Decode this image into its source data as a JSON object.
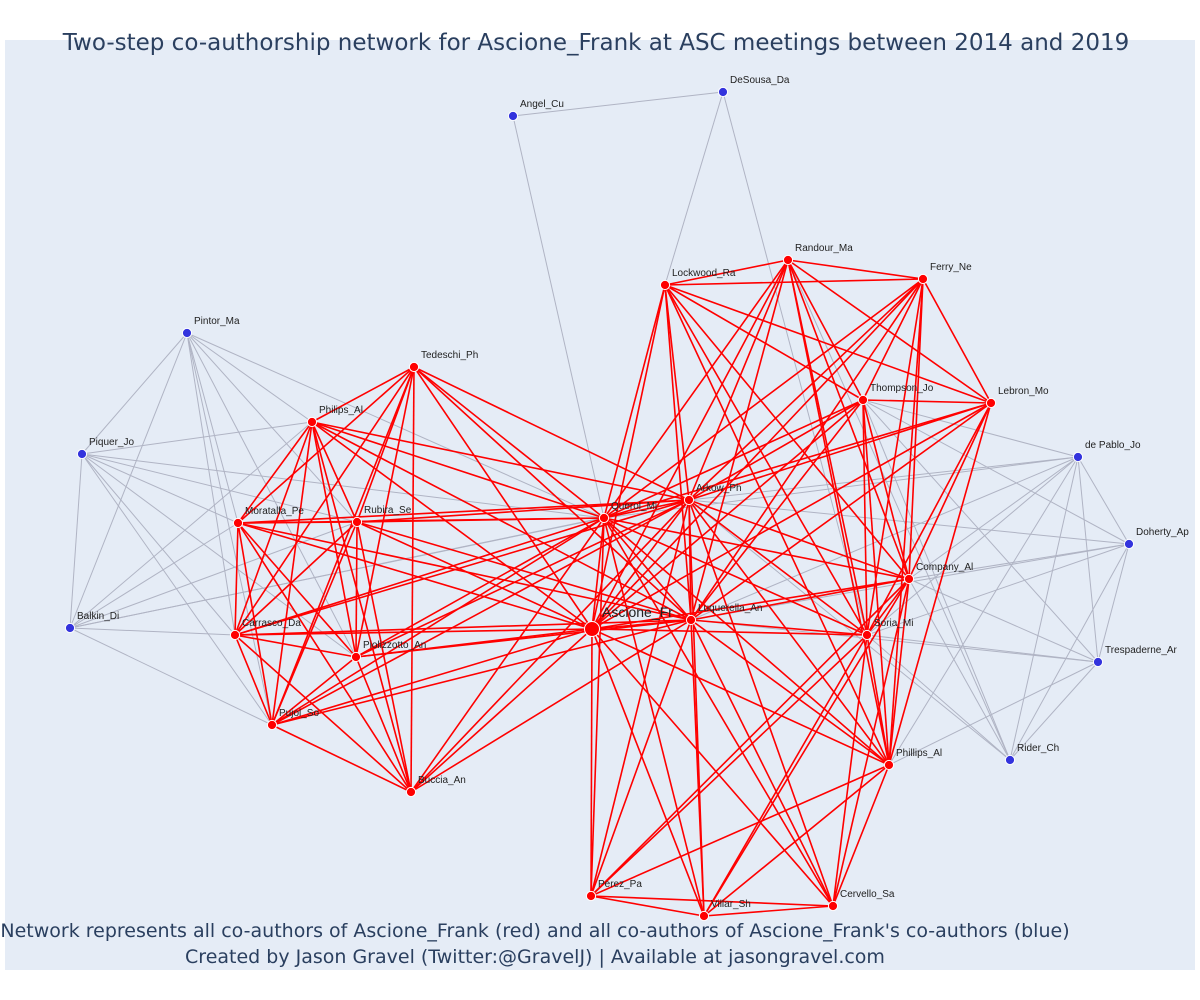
{
  "title": "Two-step co-authorship network for Ascione_Frank at ASC meetings between 2014 and 2019",
  "footer": {
    "line1": "Network represents all co-authors of Ascione_Frank (red) and all co-authors of Ascione_Frank's co-authors (blue)",
    "line2": "Created by Jason Gravel (Twitter:@GravelJ) | Available at jasongravel.com"
  },
  "colors": {
    "background": "#e5ecf6",
    "first_step": "#ff0000",
    "second_step": "#3333dd",
    "second_step_edge": "#b0b4c4",
    "text": "#2a3f5f"
  },
  "center_node": "Ascione_Fr",
  "nodes": [
    {
      "id": "Ascione_Fr",
      "group": "center"
    },
    {
      "id": "Querol_Mi",
      "group": "red"
    },
    {
      "id": "Arkow_Ph",
      "group": "red"
    },
    {
      "id": "Luquerella_An",
      "group": "red"
    },
    {
      "id": "Lockwood_Ra",
      "group": "red"
    },
    {
      "id": "Randour_Ma",
      "group": "red"
    },
    {
      "id": "Ferry_Ne",
      "group": "red"
    },
    {
      "id": "Thompson_Jo",
      "group": "red"
    },
    {
      "id": "Lebron_Mo",
      "group": "red"
    },
    {
      "id": "Company_Al",
      "group": "red"
    },
    {
      "id": "Soria_Mi",
      "group": "red"
    },
    {
      "id": "Phillips_Al",
      "group": "red"
    },
    {
      "id": "Perez_Pa",
      "group": "red"
    },
    {
      "id": "Villar_Sh",
      "group": "red"
    },
    {
      "id": "Cervello_Sa",
      "group": "red"
    },
    {
      "id": "Tedeschi_Ph",
      "group": "red"
    },
    {
      "id": "Philips_Al",
      "group": "red"
    },
    {
      "id": "Moratalla_Pe",
      "group": "red"
    },
    {
      "id": "Rubira_Se",
      "group": "red"
    },
    {
      "id": "Carrasco_Da",
      "group": "red"
    },
    {
      "id": "Piolizzotto_An",
      "group": "red"
    },
    {
      "id": "Pujol_So",
      "group": "red"
    },
    {
      "id": "Buccia_An",
      "group": "red"
    },
    {
      "id": "Angel_Cu",
      "group": "blue"
    },
    {
      "id": "DeSousa_Da",
      "group": "blue"
    },
    {
      "id": "Pintor_Ma",
      "group": "blue"
    },
    {
      "id": "Piquer_Jo",
      "group": "blue"
    },
    {
      "id": "Balkin_Di",
      "group": "blue"
    },
    {
      "id": "de Pablo_Jo",
      "group": "blue"
    },
    {
      "id": "Doherty_Ap",
      "group": "blue"
    },
    {
      "id": "Trespaderne_Ar",
      "group": "blue"
    },
    {
      "id": "Rider_Ch",
      "group": "blue"
    }
  ],
  "red_cliques": [
    [
      "Ascione_Fr",
      "Querol_Mi",
      "Arkow_Ph",
      "Luquerella_An",
      "Lockwood_Ra",
      "Randour_Ma",
      "Ferry_Ne",
      "Thompson_Jo",
      "Lebron_Mo",
      "Company_Al",
      "Soria_Mi",
      "Phillips_Al"
    ],
    [
      "Ascione_Fr",
      "Querol_Mi",
      "Arkow_Ph",
      "Luquerella_An",
      "Tedeschi_Ph",
      "Philips_Al",
      "Moratalla_Pe",
      "Rubira_Se",
      "Carrasco_Da",
      "Piolizzotto_An",
      "Pujol_So",
      "Buccia_An"
    ],
    [
      "Ascione_Fr",
      "Querol_Mi",
      "Arkow_Ph",
      "Luquerella_An",
      "Company_Al",
      "Soria_Mi",
      "Phillips_Al",
      "Perez_Pa",
      "Villar_Sh",
      "Cervello_Sa"
    ]
  ],
  "blue_edges": [
    [
      "Angel_Cu",
      "DeSousa_Da"
    ],
    [
      "Angel_Cu",
      "Querol_Mi"
    ],
    [
      "DeSousa_Da",
      "Lockwood_Ra"
    ],
    [
      "DeSousa_Da",
      "Soria_Mi"
    ],
    [
      "Pintor_Ma",
      "Piquer_Jo"
    ],
    [
      "Pintor_Ma",
      "Balkin_Di"
    ],
    [
      "Pintor_Ma",
      "Philips_Al"
    ],
    [
      "Pintor_Ma",
      "Moratalla_Pe"
    ],
    [
      "Pintor_Ma",
      "Rubira_Se"
    ],
    [
      "Pintor_Ma",
      "Carrasco_Da"
    ],
    [
      "Pintor_Ma",
      "Piolizzotto_An"
    ],
    [
      "Pintor_Ma",
      "Pujol_So"
    ],
    [
      "Pintor_Ma",
      "Querol_Mi"
    ],
    [
      "Piquer_Jo",
      "Balkin_Di"
    ],
    [
      "Piquer_Jo",
      "Philips_Al"
    ],
    [
      "Piquer_Jo",
      "Moratalla_Pe"
    ],
    [
      "Piquer_Jo",
      "Rubira_Se"
    ],
    [
      "Piquer_Jo",
      "Carrasco_Da"
    ],
    [
      "Piquer_Jo",
      "Piolizzotto_An"
    ],
    [
      "Piquer_Jo",
      "Pujol_So"
    ],
    [
      "Piquer_Jo",
      "Querol_Mi"
    ],
    [
      "Balkin_Di",
      "Philips_Al"
    ],
    [
      "Balkin_Di",
      "Moratalla_Pe"
    ],
    [
      "Balkin_Di",
      "Rubira_Se"
    ],
    [
      "Balkin_Di",
      "Carrasco_Da"
    ],
    [
      "Balkin_Di",
      "Pujol_So"
    ],
    [
      "Balkin_Di",
      "Querol_Mi"
    ],
    [
      "Balkin_Di",
      "Arkow_Ph"
    ],
    [
      "de Pablo_Jo",
      "Doherty_Ap"
    ],
    [
      "de Pablo_Jo",
      "Trespaderne_Ar"
    ],
    [
      "de Pablo_Jo",
      "Rider_Ch"
    ],
    [
      "de Pablo_Jo",
      "Company_Al"
    ],
    [
      "de Pablo_Jo",
      "Soria_Mi"
    ],
    [
      "de Pablo_Jo",
      "Phillips_Al"
    ],
    [
      "de Pablo_Jo",
      "Thompson_Jo"
    ],
    [
      "de Pablo_Jo",
      "Arkow_Ph"
    ],
    [
      "de Pablo_Jo",
      "Querol_Mi"
    ],
    [
      "de Pablo_Jo",
      "Luquerella_An"
    ],
    [
      "Doherty_Ap",
      "Trespaderne_Ar"
    ],
    [
      "Doherty_Ap",
      "Rider_Ch"
    ],
    [
      "Doherty_Ap",
      "Company_Al"
    ],
    [
      "Doherty_Ap",
      "Soria_Mi"
    ],
    [
      "Doherty_Ap",
      "Thompson_Jo"
    ],
    [
      "Doherty_Ap",
      "Arkow_Ph"
    ],
    [
      "Doherty_Ap",
      "Luquerella_An"
    ],
    [
      "Trespaderne_Ar",
      "Rider_Ch"
    ],
    [
      "Trespaderne_Ar",
      "Company_Al"
    ],
    [
      "Trespaderne_Ar",
      "Soria_Mi"
    ],
    [
      "Trespaderne_Ar",
      "Phillips_Al"
    ],
    [
      "Trespaderne_Ar",
      "Thompson_Jo"
    ],
    [
      "Trespaderne_Ar",
      "Luquerella_An"
    ],
    [
      "Rider_Ch",
      "Company_Al"
    ],
    [
      "Rider_Ch",
      "Soria_Mi"
    ],
    [
      "Rider_Ch",
      "Thompson_Jo"
    ],
    [
      "Rider_Ch",
      "Randour_Ma"
    ],
    [
      "Rider_Ch",
      "Arkow_Ph"
    ]
  ]
}
